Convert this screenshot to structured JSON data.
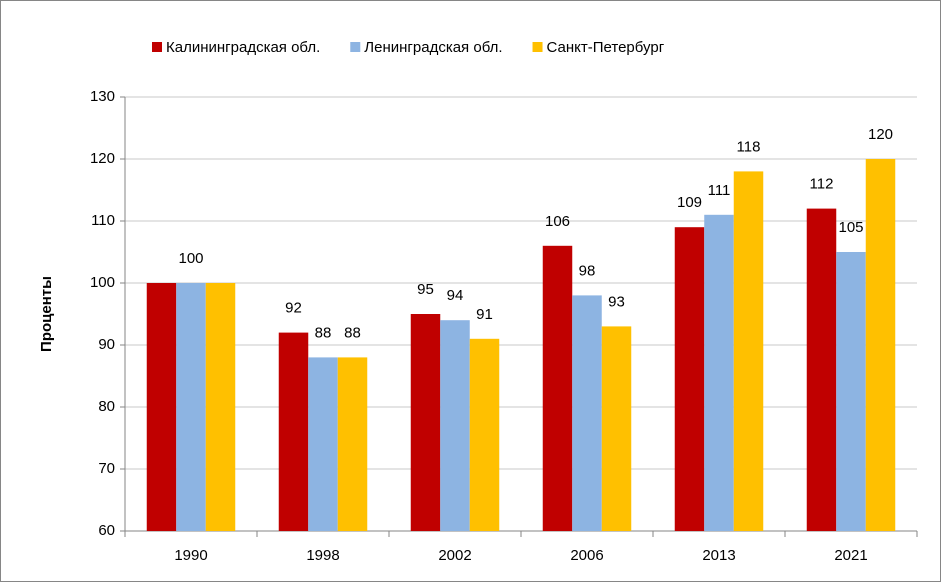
{
  "chart_data": {
    "type": "bar",
    "y_label": "Проценты",
    "categories": [
      "1990",
      "1998",
      "2002",
      "2006",
      "2013",
      "2021"
    ],
    "series": [
      {
        "name": "Калининградская обл.",
        "color": "#c00000",
        "values": [
          100,
          92,
          95,
          106,
          109,
          112
        ],
        "value_labels": [
          null,
          "92",
          "95",
          "106",
          "109",
          "112"
        ]
      },
      {
        "name": "Ленинградская обл.",
        "color": "#8db4e2",
        "values": [
          100,
          88,
          94,
          98,
          111,
          105
        ],
        "value_labels": [
          "100",
          "88",
          "94",
          "98",
          "111",
          "105"
        ]
      },
      {
        "name": "Санкт-Петербург",
        "color": "#ffc000",
        "values": [
          100,
          88,
          91,
          93,
          118,
          120
        ],
        "value_labels": [
          null,
          "88",
          "91",
          "93",
          "118",
          "120"
        ]
      }
    ],
    "ylim": [
      60,
      130
    ],
    "yticks": [
      60,
      70,
      80,
      90,
      100,
      110,
      120,
      130
    ],
    "grid": true,
    "legend": "top"
  }
}
